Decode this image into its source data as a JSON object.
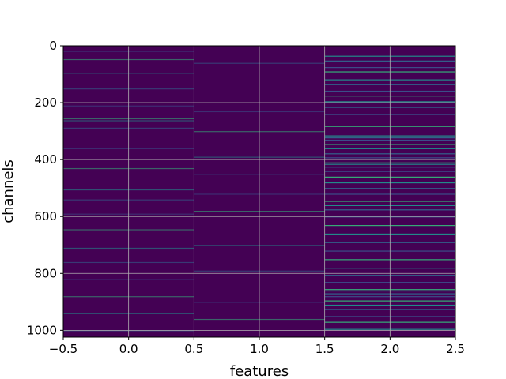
{
  "chart_data": {
    "type": "heatmap",
    "title": "",
    "xlabel": "features",
    "ylabel": "channels",
    "x_columns": [
      0,
      1,
      2
    ],
    "xlim": [
      -0.5,
      2.5
    ],
    "ylim": [
      1024,
      0
    ],
    "rows": 1024,
    "x_ticks": [
      -0.5,
      0.0,
      0.5,
      1.0,
      1.5,
      2.0,
      2.5
    ],
    "x_tick_labels": [
      "−0.5",
      "0.0",
      "0.5",
      "1.0",
      "1.5",
      "2.0",
      "2.5"
    ],
    "y_ticks": [
      0,
      200,
      400,
      600,
      800,
      1000
    ],
    "y_tick_labels": [
      "0",
      "200",
      "400",
      "600",
      "800",
      "1000"
    ],
    "y_inverted": true,
    "grid": true,
    "colormap": "viridis",
    "background_color": "#440154",
    "highlight_colors": [
      "#3b528b",
      "#31688e",
      "#21918c",
      "#35b779"
    ],
    "bright_channels_by_column": [
      [
        18,
        47,
        95,
        150,
        210,
        255,
        262,
        288,
        360,
        430,
        505,
        540,
        590,
        645,
        710,
        760,
        820,
        880,
        940,
        1000
      ],
      [
        60,
        230,
        300,
        390,
        450,
        520,
        580,
        700,
        790,
        900,
        960
      ],
      [
        35,
        52,
        75,
        90,
        118,
        135,
        158,
        175,
        195,
        215,
        240,
        282,
        315,
        322,
        330,
        345,
        360,
        378,
        392,
        410,
        415,
        425,
        440,
        460,
        480,
        500,
        520,
        545,
        560,
        575,
        600,
        630,
        660,
        690,
        720,
        750,
        780,
        805,
        830,
        855,
        860,
        870,
        880,
        895,
        910,
        925,
        950,
        970,
        995
      ]
    ]
  }
}
